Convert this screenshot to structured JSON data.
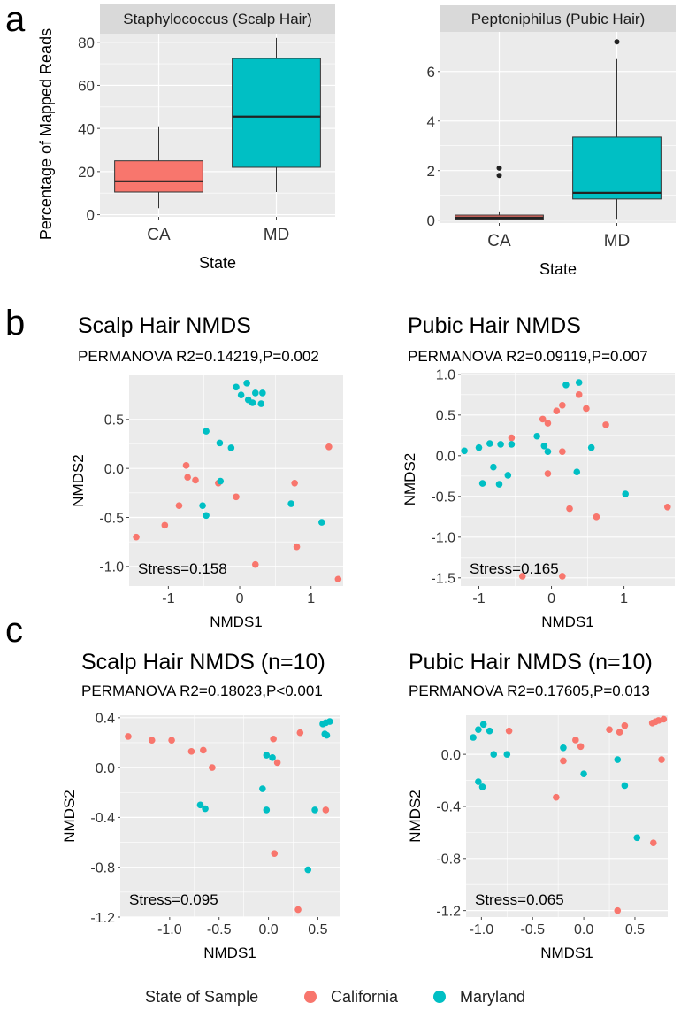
{
  "figure": {
    "panel_labels": [
      "a",
      "b",
      "c"
    ]
  },
  "colors": {
    "california": "#F8766D",
    "maryland": "#00BFC4",
    "panel_bg": "#EBEBEB",
    "strip_bg": "#D9D9D9",
    "grid": "#FFFFFF",
    "box_line": "#333333"
  },
  "legend": {
    "title": "State of Sample",
    "items": [
      "California",
      "Maryland"
    ]
  },
  "chart_data": [
    {
      "id": "a1",
      "type": "box",
      "strip_title": "Staphylococcus (Scalp Hair)",
      "xlabel": "State",
      "ylabel": "Percentage of Mapped Reads",
      "categories": [
        "CA",
        "MD"
      ],
      "ylim": [
        -1,
        84
      ],
      "yticks": [
        0,
        20,
        40,
        60,
        80
      ],
      "boxes": [
        {
          "category": "CA",
          "color": "california",
          "min": 3,
          "q1": 10.5,
          "median": 15.5,
          "q3": 25,
          "max": 41,
          "outliers": []
        },
        {
          "category": "MD",
          "color": "maryland",
          "min": 10.5,
          "q1": 22,
          "median": 45.5,
          "q3": 72.5,
          "max": 82,
          "outliers": []
        }
      ]
    },
    {
      "id": "a2",
      "type": "box",
      "strip_title": "Peptoniphilus (Pubic Hair)",
      "xlabel": "State",
      "ylabel": "",
      "categories": [
        "CA",
        "MD"
      ],
      "ylim": [
        -0.12,
        7.6
      ],
      "yticks": [
        0,
        2,
        4,
        6
      ],
      "boxes": [
        {
          "category": "CA",
          "color": "california",
          "min": 0,
          "q1": 0.04,
          "median": 0.1,
          "q3": 0.2,
          "max": 0.35,
          "outliers": [
            1.8,
            2.1
          ]
        },
        {
          "category": "MD",
          "color": "maryland",
          "min": 0.05,
          "q1": 0.85,
          "median": 1.1,
          "q3": 3.35,
          "max": 6.5,
          "outliers": [
            7.2
          ]
        }
      ]
    },
    {
      "id": "b1",
      "type": "scatter",
      "title": "Scalp Hair NMDS",
      "subtitle": "PERMANOVA R2=0.14219,P=0.002",
      "xlabel": "NMDS1",
      "ylabel": "NMDS2",
      "annotation": "Stress=0.158",
      "xlim": [
        -1.55,
        1.45
      ],
      "ylim": [
        -1.2,
        0.95
      ],
      "xticks": [
        -1,
        0,
        1
      ],
      "yticks": [
        -1.0,
        -0.5,
        0.0,
        0.5
      ],
      "ytick_labels": [
        "-1.0",
        "-0.5",
        "0.0",
        "0.5"
      ],
      "series": [
        {
          "name": "California",
          "color": "california",
          "points": [
            [
              -1.45,
              -0.7
            ],
            [
              -1.05,
              -0.58
            ],
            [
              -0.85,
              -0.38
            ],
            [
              -0.75,
              0.03
            ],
            [
              -0.73,
              -0.09
            ],
            [
              -0.62,
              -0.12
            ],
            [
              -0.3,
              -0.15
            ],
            [
              -0.05,
              -0.29
            ],
            [
              0.22,
              -0.98
            ],
            [
              0.77,
              -0.15
            ],
            [
              0.8,
              -0.8
            ],
            [
              1.25,
              0.22
            ],
            [
              1.38,
              -1.13
            ]
          ]
        },
        {
          "name": "Maryland",
          "color": "maryland",
          "points": [
            [
              -0.05,
              0.83
            ],
            [
              0.02,
              0.75
            ],
            [
              0.1,
              0.87
            ],
            [
              0.12,
              0.7
            ],
            [
              0.18,
              0.67
            ],
            [
              0.22,
              0.77
            ],
            [
              0.3,
              0.66
            ],
            [
              0.32,
              0.77
            ],
            [
              -0.47,
              0.38
            ],
            [
              -0.28,
              0.26
            ],
            [
              -0.12,
              0.21
            ],
            [
              -0.27,
              -0.13
            ],
            [
              -0.52,
              -0.38
            ],
            [
              -0.47,
              -0.48
            ],
            [
              0.72,
              -0.36
            ],
            [
              1.15,
              -0.55
            ]
          ]
        }
      ]
    },
    {
      "id": "b2",
      "type": "scatter",
      "title": "Pubic Hair NMDS",
      "subtitle": "PERMANOVA R2=0.09119,P=0.007",
      "xlabel": "NMDS1",
      "ylabel": "NMDS2",
      "annotation": "Stress=0.165",
      "xlim": [
        -1.25,
        1.7
      ],
      "ylim": [
        -1.6,
        1.02
      ],
      "xticks": [
        -1,
        0,
        1
      ],
      "yticks": [
        -1.5,
        -1.0,
        -0.5,
        0.0,
        0.5,
        1.0
      ],
      "ytick_labels": [
        "-1.5",
        "-1.0",
        "-0.5",
        "0.0",
        "0.5",
        "1.0"
      ],
      "series": [
        {
          "name": "California",
          "color": "california",
          "points": [
            [
              -0.4,
              -1.48
            ],
            [
              0.15,
              -1.48
            ],
            [
              -0.55,
              0.22
            ],
            [
              -0.12,
              0.45
            ],
            [
              -0.05,
              0.4
            ],
            [
              0.07,
              0.55
            ],
            [
              0.15,
              0.62
            ],
            [
              0.38,
              0.75
            ],
            [
              0.48,
              0.58
            ],
            [
              0.75,
              0.38
            ],
            [
              -0.05,
              -0.22
            ],
            [
              0.15,
              0.05
            ],
            [
              0.25,
              -0.65
            ],
            [
              0.62,
              -0.75
            ],
            [
              1.6,
              -0.63
            ]
          ]
        },
        {
          "name": "Maryland",
          "color": "maryland",
          "points": [
            [
              -1.2,
              0.06
            ],
            [
              -1.0,
              0.1
            ],
            [
              -0.85,
              0.15
            ],
            [
              -0.7,
              0.14
            ],
            [
              -0.55,
              0.14
            ],
            [
              -0.95,
              -0.34
            ],
            [
              -0.8,
              -0.14
            ],
            [
              -0.72,
              -0.35
            ],
            [
              -0.6,
              -0.24
            ],
            [
              -0.2,
              0.24
            ],
            [
              -0.1,
              0.12
            ],
            [
              0.2,
              0.87
            ],
            [
              0.38,
              0.9
            ],
            [
              0.35,
              -0.2
            ],
            [
              0.55,
              0.1
            ],
            [
              1.02,
              -0.47
            ],
            [
              -0.05,
              0.05
            ]
          ]
        }
      ]
    },
    {
      "id": "c1",
      "type": "scatter",
      "title": "Scalp Hair NMDS (n=10)",
      "subtitle": "PERMANOVA R2=0.18023,P<0.001",
      "xlabel": "NMDS1",
      "ylabel": "NMDS2",
      "annotation": "Stress=0.095",
      "xlim": [
        -1.5,
        0.72
      ],
      "ylim": [
        -1.2,
        0.42
      ],
      "xticks": [
        -1.0,
        -0.5,
        0.0,
        0.5
      ],
      "yticks": [
        -1.2,
        -0.8,
        -0.4,
        0.0,
        0.4
      ],
      "xtick_labels": [
        "-1.0",
        "-0.5",
        "0.0",
        "0.5"
      ],
      "ytick_labels": [
        "-1.2",
        "-0.8",
        "-0.4",
        "0.0",
        "0.4"
      ],
      "series": [
        {
          "name": "California",
          "color": "california",
          "points": [
            [
              -1.42,
              0.25
            ],
            [
              -1.18,
              0.22
            ],
            [
              -0.98,
              0.22
            ],
            [
              -0.78,
              0.13
            ],
            [
              -0.66,
              0.14
            ],
            [
              -0.57,
              0.0
            ],
            [
              0.05,
              0.23
            ],
            [
              0.09,
              0.04
            ],
            [
              0.32,
              0.28
            ],
            [
              0.06,
              -0.69
            ],
            [
              0.3,
              -1.14
            ],
            [
              0.58,
              -0.34
            ]
          ]
        },
        {
          "name": "Maryland",
          "color": "maryland",
          "points": [
            [
              -0.69,
              -0.3
            ],
            [
              -0.64,
              -0.33
            ],
            [
              -0.02,
              0.1
            ],
            [
              0.04,
              0.08
            ],
            [
              -0.06,
              -0.17
            ],
            [
              -0.02,
              -0.34
            ],
            [
              0.4,
              -0.82
            ],
            [
              0.47,
              -0.34
            ],
            [
              0.55,
              0.35
            ],
            [
              0.58,
              0.36
            ],
            [
              0.62,
              0.37
            ],
            [
              0.57,
              0.27
            ],
            [
              0.59,
              0.26
            ]
          ]
        }
      ]
    },
    {
      "id": "c2",
      "type": "scatter",
      "title": "Pubic Hair NMDS (n=10)",
      "subtitle": "PERMANOVA R2=0.17605,P=0.013",
      "xlabel": "NMDS1",
      "ylabel": "NMDS2",
      "annotation": "Stress=0.065",
      "xlim": [
        -1.15,
        0.82
      ],
      "ylim": [
        -1.25,
        0.3
      ],
      "xticks": [
        -1.0,
        -0.5,
        0.0,
        0.5
      ],
      "yticks": [
        -1.2,
        -0.8,
        -0.4,
        0.0
      ],
      "xtick_labels": [
        "-1.0",
        "-0.5",
        "0.0",
        "0.5"
      ],
      "ytick_labels": [
        "-1.2",
        "-0.8",
        "-0.4",
        "0.0"
      ],
      "series": [
        {
          "name": "California",
          "color": "california",
          "points": [
            [
              -0.73,
              0.18
            ],
            [
              -0.27,
              -0.33
            ],
            [
              -0.2,
              -0.05
            ],
            [
              -0.08,
              0.11
            ],
            [
              -0.03,
              0.06
            ],
            [
              0.25,
              0.19
            ],
            [
              0.35,
              0.17
            ],
            [
              0.4,
              0.22
            ],
            [
              0.67,
              0.24
            ],
            [
              0.7,
              0.25
            ],
            [
              0.73,
              0.26
            ],
            [
              0.78,
              0.27
            ],
            [
              0.76,
              -0.04
            ],
            [
              0.68,
              -0.68
            ],
            [
              0.33,
              -1.2
            ]
          ]
        },
        {
          "name": "Maryland",
          "color": "maryland",
          "points": [
            [
              -1.08,
              0.13
            ],
            [
              -1.03,
              0.19
            ],
            [
              -0.98,
              0.23
            ],
            [
              -0.92,
              0.18
            ],
            [
              -0.88,
              0.0
            ],
            [
              -0.75,
              0.0
            ],
            [
              -0.2,
              0.05
            ],
            [
              0.0,
              -0.15
            ],
            [
              -1.03,
              -0.21
            ],
            [
              -0.99,
              -0.25
            ],
            [
              0.33,
              -0.04
            ],
            [
              0.4,
              -0.24
            ],
            [
              0.52,
              -0.64
            ]
          ]
        }
      ]
    }
  ]
}
